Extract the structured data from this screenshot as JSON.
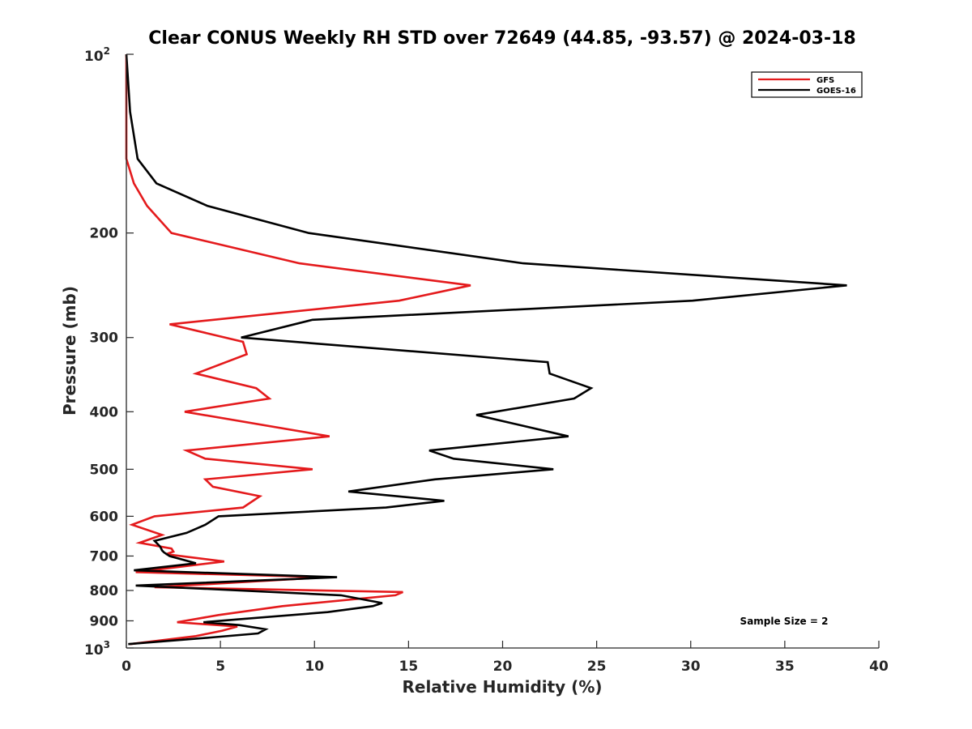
{
  "chart_data": {
    "type": "line",
    "title": "Clear CONUS Weekly RH STD over 72649 (44.85, -93.57) @ 2024-03-18",
    "xlabel": "Relative Humidity (%)",
    "ylabel": "Pressure (mb)",
    "xlim": [
      0,
      40
    ],
    "ylim": [
      100,
      1000
    ],
    "y_scale": "log",
    "y_reversed": true,
    "x_ticks": [
      0,
      5,
      10,
      15,
      20,
      25,
      30,
      35,
      40
    ],
    "x_tick_labels": [
      "0",
      "5",
      "10",
      "15",
      "20",
      "25",
      "30",
      "35",
      "40"
    ],
    "y_ticks": [
      {
        "value": 100,
        "base": "10",
        "exp": "2"
      },
      {
        "value": 200,
        "label": "200"
      },
      {
        "value": 300,
        "label": "300"
      },
      {
        "value": 400,
        "label": "400"
      },
      {
        "value": 500,
        "label": "500"
      },
      {
        "value": 600,
        "label": "600"
      },
      {
        "value": 700,
        "label": "700"
      },
      {
        "value": 800,
        "label": "800"
      },
      {
        "value": 900,
        "label": "900"
      },
      {
        "value": 1000,
        "base": "10",
        "exp": "3"
      }
    ],
    "grid": false,
    "legend_position": "top-right",
    "annotation": "Sample Size = 2",
    "series": [
      {
        "name": "GFS",
        "color": "#e41a1c",
        "points": [
          [
            0,
            100
          ],
          [
            0,
            125
          ],
          [
            0,
            150
          ],
          [
            0.4,
            165
          ],
          [
            1.1,
            180
          ],
          [
            2.4,
            200
          ],
          [
            9.2,
            225
          ],
          [
            18.3,
            245
          ],
          [
            14.5,
            260
          ],
          [
            2.3,
            285
          ],
          [
            6.2,
            305
          ],
          [
            6.4,
            320
          ],
          [
            3.7,
            345
          ],
          [
            6.9,
            365
          ],
          [
            7.6,
            380
          ],
          [
            3.1,
            400
          ],
          [
            10.8,
            440
          ],
          [
            3.2,
            465
          ],
          [
            4.2,
            480
          ],
          [
            9.9,
            500
          ],
          [
            4.2,
            520
          ],
          [
            4.6,
            535
          ],
          [
            7.1,
            555
          ],
          [
            6.2,
            580
          ],
          [
            1.5,
            600
          ],
          [
            0.3,
            620
          ],
          [
            1.9,
            645
          ],
          [
            0.7,
            665
          ],
          [
            2.4,
            680
          ],
          [
            2.5,
            688
          ],
          [
            2.1,
            695
          ],
          [
            5.2,
            715
          ],
          [
            0.5,
            745
          ],
          [
            10.6,
            760
          ],
          [
            1.5,
            790
          ],
          [
            14.7,
            805
          ],
          [
            14.3,
            815
          ],
          [
            8.3,
            850
          ],
          [
            4.9,
            880
          ],
          [
            2.7,
            905
          ],
          [
            5.9,
            920
          ],
          [
            5.1,
            935
          ],
          [
            3.7,
            955
          ],
          [
            0.2,
            985
          ]
        ]
      },
      {
        "name": "GOES-16",
        "color": "#000000",
        "points": [
          [
            0,
            100
          ],
          [
            0.2,
            125
          ],
          [
            0.6,
            150
          ],
          [
            1.6,
            165
          ],
          [
            4.3,
            180
          ],
          [
            9.7,
            200
          ],
          [
            21.1,
            225
          ],
          [
            38.3,
            245
          ],
          [
            30.1,
            260
          ],
          [
            9.9,
            280
          ],
          [
            6.1,
            300
          ],
          [
            22.4,
            330
          ],
          [
            22.5,
            345
          ],
          [
            24.7,
            365
          ],
          [
            23.8,
            380
          ],
          [
            18.6,
            405
          ],
          [
            23.5,
            440
          ],
          [
            16.1,
            465
          ],
          [
            17.4,
            480
          ],
          [
            22.7,
            500
          ],
          [
            16.4,
            520
          ],
          [
            11.8,
            545
          ],
          [
            16.9,
            565
          ],
          [
            13.8,
            580
          ],
          [
            4.9,
            600
          ],
          [
            4.2,
            620
          ],
          [
            3.2,
            640
          ],
          [
            1.5,
            660
          ],
          [
            1.8,
            675
          ],
          [
            1.9,
            685
          ],
          [
            2.0,
            690
          ],
          [
            2.3,
            700
          ],
          [
            3.7,
            720
          ],
          [
            0.4,
            740
          ],
          [
            11.2,
            760
          ],
          [
            0.5,
            785
          ],
          [
            11.4,
            815
          ],
          [
            13.6,
            840
          ],
          [
            13.1,
            850
          ],
          [
            10.7,
            870
          ],
          [
            5.9,
            895
          ],
          [
            4.1,
            905
          ],
          [
            6.0,
            915
          ],
          [
            7.4,
            930
          ],
          [
            7.0,
            945
          ],
          [
            4.5,
            960
          ],
          [
            0.1,
            985
          ]
        ]
      }
    ]
  }
}
